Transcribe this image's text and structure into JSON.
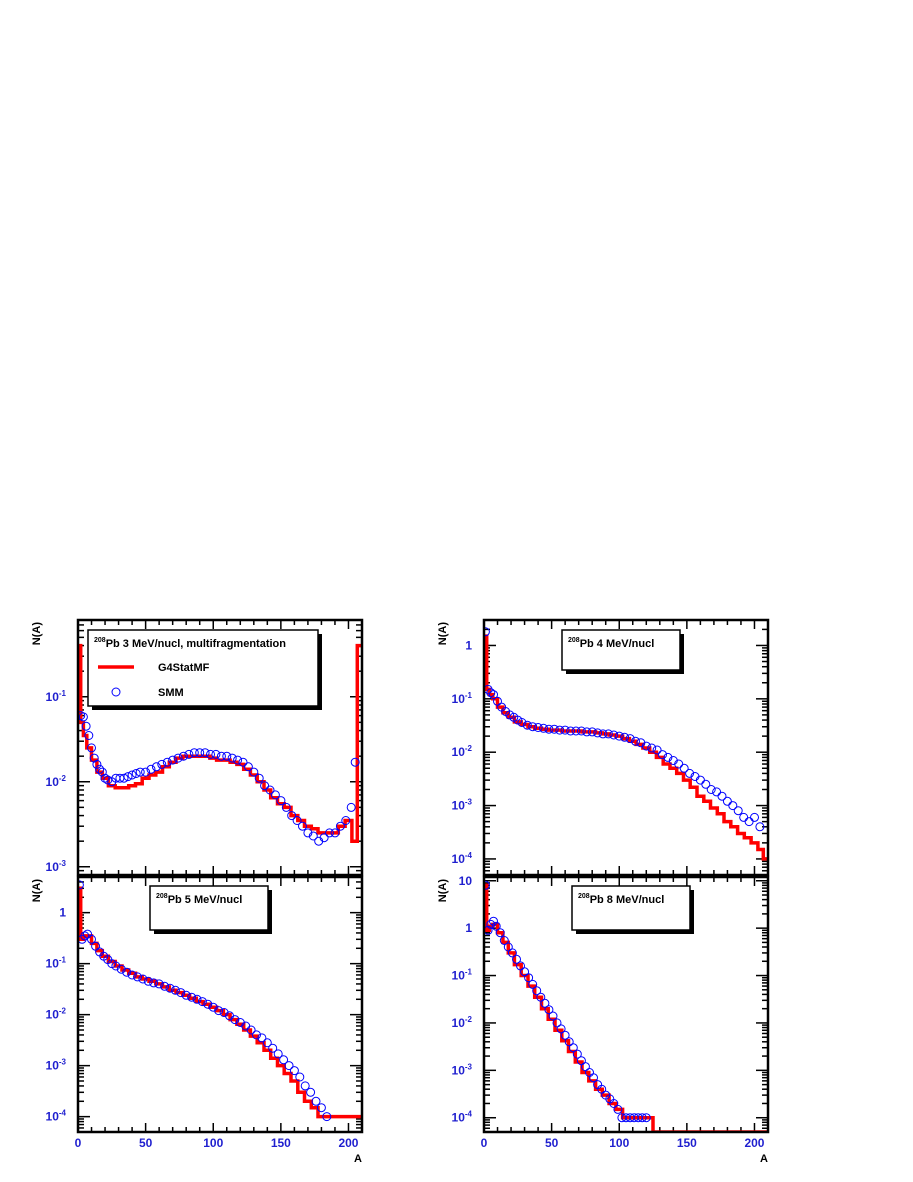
{
  "chart_data": [
    {
      "type": "scatter",
      "panel": "top-left",
      "xlabel": "",
      "ylabel": "N(A)",
      "xlim": [
        0,
        210
      ],
      "ylim": [
        0.0008,
        0.8
      ],
      "yscale": "log",
      "xticks": [],
      "yticks": [
        "10-3",
        "10-2",
        "10-1"
      ],
      "legend": {
        "placement": "top-left",
        "title_sup": "208",
        "title": "Pb   3 MeV/nucl, multifragmentation",
        "entries": [
          "G4StatMF",
          "SMM"
        ]
      },
      "series": [
        {
          "name": "G4StatMF",
          "style": "histogram",
          "color": "#ff0000",
          "x": [
            1,
            3,
            5,
            8,
            12,
            16,
            20,
            25,
            30,
            35,
            40,
            45,
            50,
            55,
            60,
            65,
            70,
            75,
            80,
            85,
            90,
            95,
            100,
            105,
            110,
            115,
            120,
            125,
            130,
            135,
            140,
            145,
            150,
            155,
            160,
            165,
            170,
            175,
            180,
            185,
            190,
            195,
            200,
            205,
            208
          ],
          "y": [
            0.4,
            0.05,
            0.035,
            0.025,
            0.018,
            0.013,
            0.011,
            0.009,
            0.0085,
            0.0085,
            0.009,
            0.0095,
            0.011,
            0.012,
            0.013,
            0.015,
            0.017,
            0.019,
            0.02,
            0.02,
            0.02,
            0.02,
            0.019,
            0.018,
            0.018,
            0.017,
            0.016,
            0.014,
            0.012,
            0.01,
            0.008,
            0.0065,
            0.0055,
            0.005,
            0.004,
            0.0035,
            0.003,
            0.0028,
            0.0025,
            0.0025,
            0.0025,
            0.003,
            0.0035,
            0.002,
            0.4
          ]
        },
        {
          "name": "SMM",
          "style": "open-circles",
          "color": "#0000ff",
          "x": [
            2,
            4,
            6,
            8,
            10,
            12,
            14,
            16,
            18,
            20,
            22,
            25,
            28,
            31,
            34,
            37,
            40,
            43,
            46,
            50,
            54,
            58,
            62,
            66,
            70,
            74,
            78,
            82,
            86,
            90,
            94,
            98,
            102,
            106,
            110,
            114,
            118,
            122,
            126,
            130,
            134,
            138,
            142,
            146,
            150,
            154,
            158,
            162,
            166,
            170,
            174,
            178,
            182,
            186,
            190,
            194,
            198,
            202,
            205
          ],
          "y": [
            0.06,
            0.058,
            0.045,
            0.035,
            0.025,
            0.019,
            0.016,
            0.014,
            0.013,
            0.011,
            0.0105,
            0.01,
            0.011,
            0.011,
            0.011,
            0.0115,
            0.012,
            0.0125,
            0.013,
            0.013,
            0.014,
            0.015,
            0.016,
            0.017,
            0.018,
            0.019,
            0.02,
            0.021,
            0.022,
            0.022,
            0.022,
            0.021,
            0.021,
            0.02,
            0.02,
            0.019,
            0.018,
            0.017,
            0.015,
            0.013,
            0.011,
            0.009,
            0.008,
            0.007,
            0.006,
            0.005,
            0.004,
            0.0035,
            0.003,
            0.0025,
            0.0023,
            0.002,
            0.0022,
            0.0025,
            0.0025,
            0.003,
            0.0035,
            0.005,
            0.017
          ]
        }
      ]
    },
    {
      "type": "scatter",
      "panel": "top-right",
      "xlabel": "",
      "ylabel": "N(A)",
      "xlim": [
        0,
        210
      ],
      "ylim": [
        5e-05,
        3
      ],
      "yscale": "log",
      "xticks": [],
      "yticks": [
        "10-4",
        "10-3",
        "10-2",
        "10-1",
        "1"
      ],
      "legend": {
        "placement": "top-center",
        "title_sup": "208",
        "title": "Pb   4 MeV/nucl",
        "entries": []
      },
      "series": [
        {
          "name": "G4StatMF",
          "style": "histogram",
          "color": "#ff0000",
          "x": [
            1,
            3,
            5,
            8,
            12,
            16,
            20,
            25,
            30,
            35,
            40,
            45,
            50,
            55,
            60,
            65,
            70,
            75,
            80,
            85,
            90,
            95,
            100,
            105,
            110,
            115,
            120,
            125,
            130,
            135,
            140,
            145,
            150,
            155,
            160,
            165,
            170,
            175,
            180,
            185,
            190,
            195,
            200,
            205,
            208
          ],
          "y": [
            1.5,
            0.15,
            0.12,
            0.1,
            0.07,
            0.055,
            0.045,
            0.037,
            0.033,
            0.03,
            0.028,
            0.027,
            0.026,
            0.026,
            0.025,
            0.025,
            0.025,
            0.024,
            0.024,
            0.023,
            0.022,
            0.021,
            0.02,
            0.018,
            0.016,
            0.014,
            0.012,
            0.01,
            0.008,
            0.006,
            0.005,
            0.004,
            0.003,
            0.0022,
            0.0015,
            0.0012,
            0.0009,
            0.0007,
            0.0005,
            0.0004,
            0.0003,
            0.00025,
            0.0002,
            0.00015,
            0.0001
          ]
        },
        {
          "name": "SMM",
          "style": "open-circles",
          "color": "#0000ff",
          "x": [
            1,
            3,
            5,
            7,
            10,
            13,
            16,
            19,
            22,
            25,
            28,
            32,
            36,
            40,
            44,
            48,
            52,
            56,
            60,
            64,
            68,
            72,
            76,
            80,
            84,
            88,
            92,
            96,
            100,
            104,
            108,
            112,
            116,
            120,
            124,
            128,
            132,
            136,
            140,
            144,
            148,
            152,
            156,
            160,
            164,
            168,
            172,
            176,
            180,
            184,
            188,
            192,
            196,
            200,
            204
          ],
          "y": [
            1.8,
            0.15,
            0.13,
            0.12,
            0.09,
            0.07,
            0.058,
            0.05,
            0.045,
            0.04,
            0.036,
            0.032,
            0.03,
            0.029,
            0.028,
            0.027,
            0.027,
            0.026,
            0.026,
            0.025,
            0.025,
            0.025,
            0.024,
            0.024,
            0.023,
            0.022,
            0.022,
            0.021,
            0.02,
            0.019,
            0.018,
            0.016,
            0.015,
            0.013,
            0.012,
            0.011,
            0.009,
            0.008,
            0.007,
            0.006,
            0.005,
            0.004,
            0.0035,
            0.003,
            0.0025,
            0.002,
            0.0018,
            0.0015,
            0.0012,
            0.001,
            0.0008,
            0.0006,
            0.0005,
            0.0006,
            0.0004
          ]
        }
      ]
    },
    {
      "type": "scatter",
      "panel": "bottom-left",
      "xlabel": "A",
      "ylabel": "N(A)",
      "xlim": [
        0,
        210
      ],
      "ylim": [
        5e-05,
        5
      ],
      "yscale": "log",
      "xticks": [
        "0",
        "50",
        "100",
        "150",
        "200"
      ],
      "yticks": [
        "10-4",
        "10-3",
        "10-2",
        "10-1",
        "1"
      ],
      "legend": {
        "placement": "top-center",
        "title_sup": "208",
        "title": "Pb   5 MeV/nucl",
        "entries": []
      },
      "series": [
        {
          "name": "G4StatMF",
          "style": "histogram",
          "color": "#ff0000",
          "x": [
            1,
            3,
            5,
            8,
            12,
            16,
            20,
            25,
            30,
            35,
            40,
            45,
            50,
            55,
            60,
            65,
            70,
            75,
            80,
            85,
            90,
            95,
            100,
            105,
            110,
            115,
            120,
            125,
            130,
            135,
            140,
            145,
            150,
            155,
            160,
            165,
            170,
            175,
            180,
            185,
            190
          ],
          "y": [
            3,
            0.3,
            0.35,
            0.35,
            0.25,
            0.18,
            0.14,
            0.11,
            0.09,
            0.075,
            0.065,
            0.055,
            0.05,
            0.045,
            0.04,
            0.035,
            0.03,
            0.027,
            0.024,
            0.021,
            0.018,
            0.016,
            0.014,
            0.012,
            0.01,
            0.008,
            0.0065,
            0.005,
            0.0038,
            0.0028,
            0.002,
            0.0014,
            0.001,
            0.0007,
            0.0005,
            0.0003,
            0.0002,
            0.00015,
            0.0001,
            0.0001,
            0.0001
          ]
        },
        {
          "name": "SMM",
          "style": "open-circles",
          "color": "#0000ff",
          "x": [
            1,
            3,
            5,
            7,
            10,
            13,
            16,
            19,
            22,
            25,
            28,
            32,
            36,
            40,
            44,
            48,
            52,
            56,
            60,
            64,
            68,
            72,
            76,
            80,
            84,
            88,
            92,
            96,
            100,
            104,
            108,
            112,
            116,
            120,
            124,
            128,
            132,
            136,
            140,
            144,
            148,
            152,
            156,
            160,
            164,
            168,
            172,
            176,
            180,
            184
          ],
          "y": [
            3.5,
            0.3,
            0.35,
            0.38,
            0.3,
            0.22,
            0.17,
            0.14,
            0.12,
            0.1,
            0.09,
            0.078,
            0.068,
            0.06,
            0.055,
            0.05,
            0.045,
            0.042,
            0.04,
            0.036,
            0.033,
            0.03,
            0.027,
            0.024,
            0.022,
            0.02,
            0.018,
            0.016,
            0.014,
            0.012,
            0.011,
            0.0095,
            0.008,
            0.007,
            0.006,
            0.005,
            0.004,
            0.0035,
            0.0028,
            0.0022,
            0.0017,
            0.0013,
            0.001,
            0.0008,
            0.0006,
            0.0004,
            0.0003,
            0.0002,
            0.00015,
            0.0001
          ]
        }
      ]
    },
    {
      "type": "scatter",
      "panel": "bottom-right",
      "xlabel": "A",
      "ylabel": "N(A)",
      "xlim": [
        0,
        210
      ],
      "ylim": [
        5e-05,
        12
      ],
      "yscale": "log",
      "xticks": [
        "0",
        "50",
        "100",
        "150",
        "200"
      ],
      "yticks": [
        "10-4",
        "10-3",
        "10-2",
        "10-1",
        "1",
        "10"
      ],
      "legend": {
        "placement": "top-center",
        "title_sup": "208",
        "title": "Pb   8 MeV/nucl",
        "entries": []
      },
      "series": [
        {
          "name": "G4StatMF",
          "style": "histogram",
          "color": "#ff0000",
          "x": [
            1,
            3,
            5,
            8,
            12,
            16,
            20,
            25,
            30,
            35,
            40,
            45,
            50,
            55,
            60,
            65,
            70,
            75,
            80,
            85,
            90,
            95,
            100,
            105,
            110,
            115,
            120,
            130,
            140,
            150,
            160,
            170,
            180,
            190,
            200,
            208
          ],
          "y": [
            8,
            0.9,
            1.1,
            1.2,
            0.8,
            0.5,
            0.3,
            0.17,
            0.1,
            0.06,
            0.035,
            0.02,
            0.012,
            0.007,
            0.0042,
            0.0025,
            0.0015,
            0.0009,
            0.0006,
            0.0004,
            0.0003,
            0.0002,
            0.00015,
            0.0001,
            0.0001,
            0.0001,
            0.0001,
            5e-05,
            5e-05,
            5e-05,
            5e-05,
            5e-05,
            5e-05,
            5e-05,
            5e-05,
            5e-05
          ]
        },
        {
          "name": "SMM",
          "style": "open-circles",
          "color": "#0000ff",
          "x": [
            1,
            3,
            5,
            7,
            9,
            12,
            15,
            18,
            21,
            24,
            27,
            30,
            33,
            36,
            39,
            42,
            45,
            48,
            51,
            54,
            57,
            60,
            63,
            66,
            69,
            72,
            75,
            78,
            81,
            84,
            87,
            90,
            93,
            96,
            99,
            102,
            105,
            108,
            111,
            114,
            117,
            120
          ],
          "y": [
            8,
            0.9,
            1.2,
            1.4,
            1.1,
            0.8,
            0.55,
            0.4,
            0.3,
            0.22,
            0.16,
            0.12,
            0.09,
            0.065,
            0.048,
            0.035,
            0.026,
            0.019,
            0.014,
            0.01,
            0.0075,
            0.0055,
            0.004,
            0.003,
            0.0022,
            0.0016,
            0.0012,
            0.0009,
            0.0007,
            0.0005,
            0.0004,
            0.0003,
            0.00025,
            0.0002,
            0.00015,
            0.0001,
            0.0001,
            0.0001,
            0.0001,
            0.0001,
            0.0001,
            0.0001
          ]
        }
      ]
    }
  ]
}
